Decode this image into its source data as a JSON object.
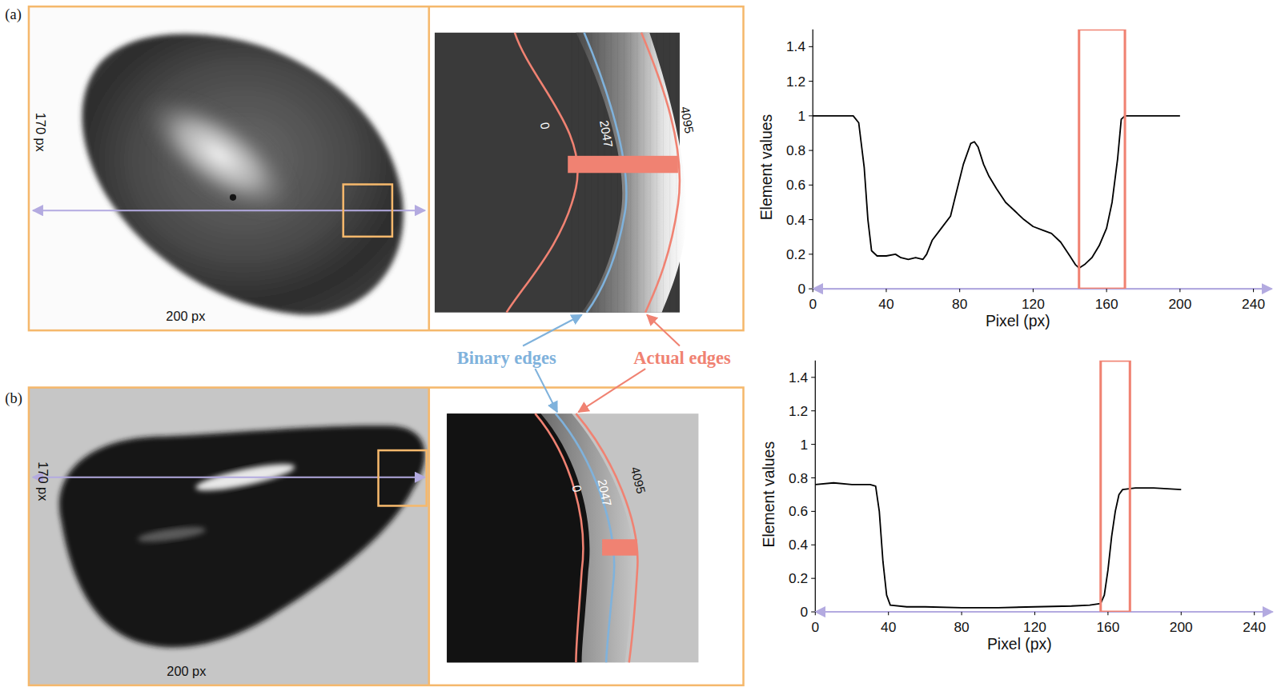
{
  "chart_data": [
    {
      "type": "line",
      "xlabel": "Pixel (px)",
      "ylabel": "Element values",
      "x": [
        0,
        10,
        22,
        25,
        28,
        30,
        32,
        35,
        40,
        45,
        48,
        52,
        56,
        60,
        62,
        65,
        70,
        75,
        78,
        82,
        86,
        88,
        90,
        93,
        96,
        100,
        105,
        110,
        115,
        120,
        125,
        130,
        135,
        140,
        143,
        145,
        148,
        152,
        156,
        160,
        163,
        166,
        168,
        170,
        180,
        190,
        200
      ],
      "values": [
        1,
        1,
        1,
        0.96,
        0.7,
        0.4,
        0.22,
        0.19,
        0.19,
        0.2,
        0.18,
        0.17,
        0.18,
        0.17,
        0.2,
        0.28,
        0.35,
        0.42,
        0.55,
        0.72,
        0.84,
        0.85,
        0.82,
        0.72,
        0.65,
        0.58,
        0.5,
        0.45,
        0.4,
        0.36,
        0.34,
        0.32,
        0.27,
        0.19,
        0.14,
        0.12,
        0.14,
        0.18,
        0.25,
        0.35,
        0.5,
        0.75,
        0.98,
        1,
        1,
        1,
        1
      ],
      "color": "#000000",
      "xlim": [
        0,
        250
      ],
      "ylim": [
        0,
        1.5
      ],
      "xticks": [
        0,
        40,
        80,
        120,
        160,
        200,
        240
      ],
      "yticks": [
        0,
        0.2,
        0.4,
        0.6,
        0.8,
        1,
        1.2,
        1.4
      ],
      "highlight_x": [
        145,
        170
      ]
    },
    {
      "type": "line",
      "xlabel": "Pixel (px)",
      "ylabel": "Element values",
      "x": [
        0,
        10,
        20,
        30,
        33,
        35,
        37,
        39,
        41,
        50,
        60,
        80,
        100,
        120,
        140,
        150,
        156,
        158,
        160,
        162,
        164,
        166,
        168,
        175,
        185,
        200
      ],
      "values": [
        0.76,
        0.77,
        0.76,
        0.76,
        0.75,
        0.6,
        0.3,
        0.1,
        0.04,
        0.03,
        0.03,
        0.025,
        0.025,
        0.03,
        0.035,
        0.04,
        0.05,
        0.1,
        0.25,
        0.45,
        0.6,
        0.7,
        0.73,
        0.74,
        0.74,
        0.73
      ],
      "color": "#000000",
      "xlim": [
        0,
        250
      ],
      "ylim": [
        0,
        1.5
      ],
      "xticks": [
        0,
        40,
        80,
        120,
        160,
        200,
        240
      ],
      "yticks": [
        0,
        0.2,
        0.4,
        0.6,
        0.8,
        1,
        1.2,
        1.4
      ],
      "highlight_x": [
        156,
        172
      ]
    }
  ],
  "panels": [
    {
      "letter": "(a)",
      "height_label": "170 px",
      "width_label": "200 px",
      "contours": [
        "0",
        "2047",
        "4095"
      ]
    },
    {
      "letter": "(b)",
      "height_label": "170 px",
      "width_label": "200 px",
      "contours": [
        "0",
        "2047",
        "4095"
      ]
    }
  ],
  "callouts": [
    "Binary edges",
    "Actual edges"
  ]
}
